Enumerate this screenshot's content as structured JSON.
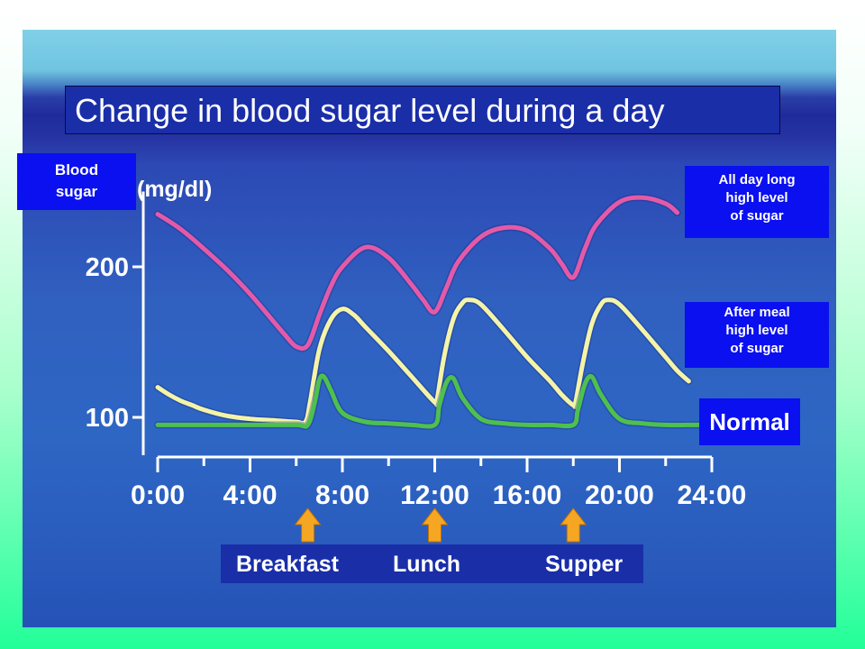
{
  "title": "Change in blood sugar level during a day",
  "ylabel": [
    "Blood",
    "sugar"
  ],
  "legend": {
    "high": [
      "All day long",
      "high level",
      "of sugar"
    ],
    "after_meal": [
      "After meal",
      "high level",
      "of sugar"
    ],
    "normal": "Normal"
  },
  "meals": [
    "Breakfast",
    "Lunch",
    "Supper"
  ],
  "colors": {
    "high": "#e45aa8",
    "after_meal": "#f4f4a8",
    "normal": "#4ec04e",
    "arrow": "#f5a623",
    "label_box": "#0a10f0"
  },
  "chart_data": {
    "type": "line",
    "unit_label": "(mg/dl)",
    "xlim": [
      0,
      24
    ],
    "ylim": [
      80,
      250
    ],
    "x_ticks": [
      "0:00",
      "4:00",
      "8:00",
      "12:00",
      "16:00",
      "20:00",
      "24:00"
    ],
    "y_ticks": [
      "100",
      "200"
    ],
    "meal_times": [
      6.5,
      12,
      18
    ],
    "series": [
      {
        "key": "high",
        "x": [
          0,
          1,
          2,
          3,
          4,
          5,
          5.5,
          6,
          6.5,
          7,
          7.5,
          8,
          9,
          10,
          11,
          11.5,
          12,
          12.5,
          13,
          14,
          15,
          16,
          17,
          17.5,
          18,
          18.5,
          19,
          20,
          21,
          22,
          22.5
        ],
        "values": [
          235,
          225,
          212,
          198,
          182,
          164,
          155,
          147,
          148,
          168,
          187,
          200,
          213,
          206,
          188,
          178,
          170,
          186,
          203,
          220,
          226,
          224,
          212,
          202,
          193,
          212,
          228,
          243,
          246,
          242,
          236
        ]
      },
      {
        "key": "after_meal",
        "x": [
          0,
          0.5,
          1,
          1.5,
          2,
          3,
          4,
          5,
          6,
          6.4,
          6.6,
          7,
          7.5,
          8,
          8.5,
          9,
          10,
          11,
          12,
          12.1,
          12.4,
          12.8,
          13.2,
          13.5,
          14,
          15,
          16,
          17,
          17.5,
          18,
          18.1,
          18.4,
          18.8,
          19.2,
          19.5,
          20,
          21,
          22,
          22.5,
          23
        ],
        "values": [
          120,
          115,
          111,
          108,
          105,
          101,
          99,
          98,
          97,
          97,
          110,
          145,
          165,
          172,
          168,
          160,
          144,
          127,
          110,
          112,
          140,
          165,
          176,
          178,
          175,
          158,
          140,
          124,
          115,
          108,
          110,
          135,
          162,
          175,
          178,
          175,
          158,
          140,
          131,
          124
        ]
      },
      {
        "key": "normal",
        "x": [
          0,
          2,
          4,
          6,
          6.5,
          6.8,
          7,
          7.2,
          7.5,
          8,
          9,
          10,
          11,
          12,
          12.2,
          12.5,
          12.8,
          13.2,
          14,
          15,
          16,
          17,
          18,
          18.2,
          18.5,
          18.8,
          19.2,
          20,
          21,
          22,
          23,
          24
        ],
        "values": [
          95,
          95,
          95,
          95,
          95,
          110,
          125,
          127,
          118,
          103,
          97,
          96,
          95,
          95,
          108,
          123,
          126,
          113,
          99,
          96,
          95,
          95,
          95,
          105,
          122,
          127,
          115,
          99,
          96,
          95,
          95,
          95
        ]
      }
    ]
  }
}
